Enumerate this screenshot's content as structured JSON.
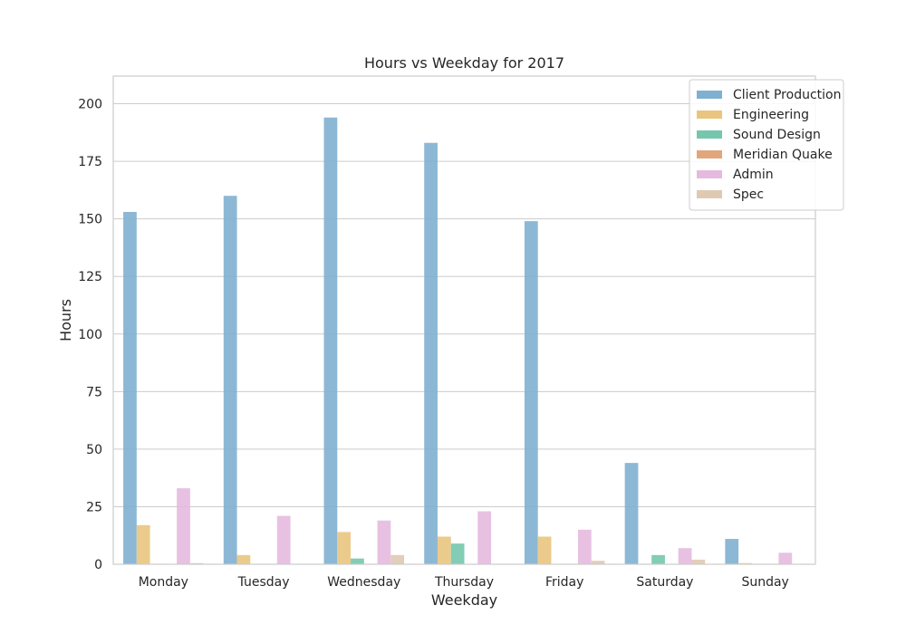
{
  "chart_data": {
    "type": "bar",
    "title": "Hours vs Weekday for 2017",
    "xlabel": "Weekday",
    "ylabel": "Hours",
    "ylim": [
      0,
      212
    ],
    "yticks": [
      0,
      25,
      50,
      75,
      100,
      125,
      150,
      175,
      200
    ],
    "grid": true,
    "legend_position": "top-right",
    "categories": [
      "Monday",
      "Tuesday",
      "Wednesday",
      "Thursday",
      "Friday",
      "Saturday",
      "Sunday"
    ],
    "series": [
      {
        "name": "Client Production",
        "color": "#7fb0d0",
        "values": [
          153,
          160,
          194,
          183,
          149,
          44,
          11
        ]
      },
      {
        "name": "Engineering",
        "color": "#e9c580",
        "values": [
          17,
          4,
          14,
          12,
          12,
          0,
          0.5
        ]
      },
      {
        "name": "Sound Design",
        "color": "#76c6ad",
        "values": [
          0,
          0,
          2.5,
          9,
          0,
          4,
          0
        ]
      },
      {
        "name": "Meridian Quake",
        "color": "#e1a77c",
        "values": [
          0,
          0,
          0,
          0,
          0,
          0,
          0
        ]
      },
      {
        "name": "Admin",
        "color": "#e6badf",
        "values": [
          33,
          21,
          19,
          23,
          15,
          7,
          5
        ]
      },
      {
        "name": "Spec",
        "color": "#dfc9b3",
        "values": [
          0.5,
          0,
          4,
          0,
          1.5,
          2,
          0
        ]
      }
    ]
  }
}
